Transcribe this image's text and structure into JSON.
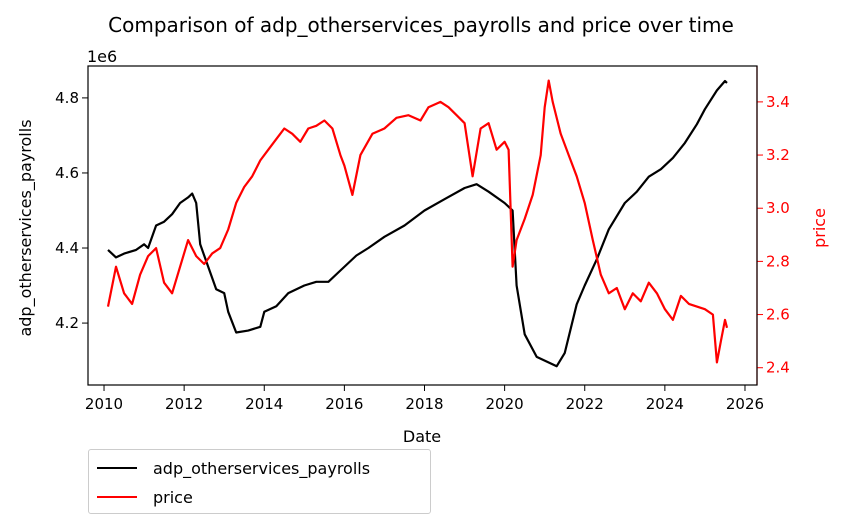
{
  "chart_data": {
    "type": "line",
    "title": "Comparison of adp_otherservices_payrolls and price over time",
    "xlabel": "Date",
    "ylabel_left": "adp_otherservices_payrolls",
    "ylabel_right": "price",
    "left_offset_label": "1e6",
    "x_ticks": [
      "2010",
      "2012",
      "2014",
      "2016",
      "2018",
      "2020",
      "2022",
      "2024",
      "2026"
    ],
    "y_left_ticks": [
      "4.2",
      "4.4",
      "4.6",
      "4.8"
    ],
    "y_right_ticks": [
      "2.4",
      "2.6",
      "2.8",
      "3.0",
      "3.2",
      "3.4"
    ],
    "xlim": [
      2009.6,
      2026.3
    ],
    "ylim_left": [
      4035000,
      4885000
    ],
    "ylim_right": [
      2.335,
      3.535
    ],
    "series": [
      {
        "name": "adp_otherservices_payrolls",
        "axis": "left",
        "color": "#000000",
        "x": [
          2010.1,
          2010.3,
          2010.5,
          2010.8,
          2011.0,
          2011.1,
          2011.3,
          2011.5,
          2011.7,
          2011.9,
          2012.1,
          2012.2,
          2012.3,
          2012.4,
          2012.6,
          2012.8,
          2013.0,
          2013.1,
          2013.3,
          2013.6,
          2013.9,
          2014.0,
          2014.3,
          2014.6,
          2015.0,
          2015.3,
          2015.6,
          2015.9,
          2016.3,
          2016.6,
          2017.0,
          2017.5,
          2018.0,
          2018.5,
          2019.0,
          2019.3,
          2019.6,
          2020.0,
          2020.2,
          2020.3,
          2020.5,
          2020.8,
          2021.0,
          2021.3,
          2021.5,
          2021.8,
          2022.0,
          2022.3,
          2022.6,
          2023.0,
          2023.3,
          2023.6,
          2023.9,
          2024.2,
          2024.5,
          2024.8,
          2025.0,
          2025.3,
          2025.5,
          2025.55
        ],
        "values": [
          4395000,
          4375000,
          4385000,
          4395000,
          4410000,
          4400000,
          4460000,
          4470000,
          4490000,
          4520000,
          4535000,
          4545000,
          4520000,
          4410000,
          4350000,
          4290000,
          4280000,
          4230000,
          4175000,
          4180000,
          4190000,
          4230000,
          4245000,
          4280000,
          4300000,
          4310000,
          4310000,
          4340000,
          4380000,
          4400000,
          4430000,
          4460000,
          4500000,
          4530000,
          4560000,
          4570000,
          4550000,
          4520000,
          4500000,
          4300000,
          4170000,
          4110000,
          4100000,
          4085000,
          4120000,
          4250000,
          4300000,
          4370000,
          4450000,
          4520000,
          4550000,
          4590000,
          4610000,
          4640000,
          4680000,
          4730000,
          4770000,
          4820000,
          4845000,
          4840000
        ]
      },
      {
        "name": "price",
        "axis": "right",
        "color": "#ff0000",
        "x": [
          2010.1,
          2010.3,
          2010.5,
          2010.7,
          2010.9,
          2011.1,
          2011.3,
          2011.5,
          2011.7,
          2011.9,
          2012.1,
          2012.3,
          2012.5,
          2012.7,
          2012.9,
          2013.1,
          2013.3,
          2013.5,
          2013.7,
          2013.9,
          2014.1,
          2014.3,
          2014.5,
          2014.7,
          2014.9,
          2015.1,
          2015.3,
          2015.5,
          2015.7,
          2015.9,
          2016.0,
          2016.2,
          2016.4,
          2016.7,
          2017.0,
          2017.3,
          2017.6,
          2017.9,
          2018.1,
          2018.4,
          2018.6,
          2018.8,
          2019.0,
          2019.2,
          2019.4,
          2019.6,
          2019.8,
          2020.0,
          2020.1,
          2020.2,
          2020.3,
          2020.5,
          2020.7,
          2020.9,
          2021.0,
          2021.1,
          2021.2,
          2021.4,
          2021.6,
          2021.8,
          2022.0,
          2022.2,
          2022.4,
          2022.6,
          2022.8,
          2023.0,
          2023.2,
          2023.4,
          2023.6,
          2023.8,
          2024.0,
          2024.2,
          2024.4,
          2024.6,
          2024.8,
          2025.0,
          2025.2,
          2025.3,
          2025.4,
          2025.5,
          2025.55
        ],
        "values": [
          2.63,
          2.78,
          2.68,
          2.64,
          2.75,
          2.82,
          2.85,
          2.72,
          2.68,
          2.78,
          2.88,
          2.82,
          2.79,
          2.83,
          2.85,
          2.92,
          3.02,
          3.08,
          3.12,
          3.18,
          3.22,
          3.26,
          3.3,
          3.28,
          3.25,
          3.3,
          3.31,
          3.33,
          3.3,
          3.2,
          3.16,
          3.05,
          3.2,
          3.28,
          3.3,
          3.34,
          3.35,
          3.33,
          3.38,
          3.4,
          3.38,
          3.35,
          3.32,
          3.12,
          3.3,
          3.32,
          3.22,
          3.25,
          3.22,
          2.78,
          2.88,
          2.96,
          3.05,
          3.2,
          3.38,
          3.48,
          3.4,
          3.28,
          3.2,
          3.12,
          3.02,
          2.88,
          2.75,
          2.68,
          2.7,
          2.62,
          2.68,
          2.65,
          2.72,
          2.68,
          2.62,
          2.58,
          2.67,
          2.64,
          2.63,
          2.62,
          2.6,
          2.42,
          2.5,
          2.58,
          2.55
        ]
      }
    ],
    "legend_position": "below-left"
  }
}
